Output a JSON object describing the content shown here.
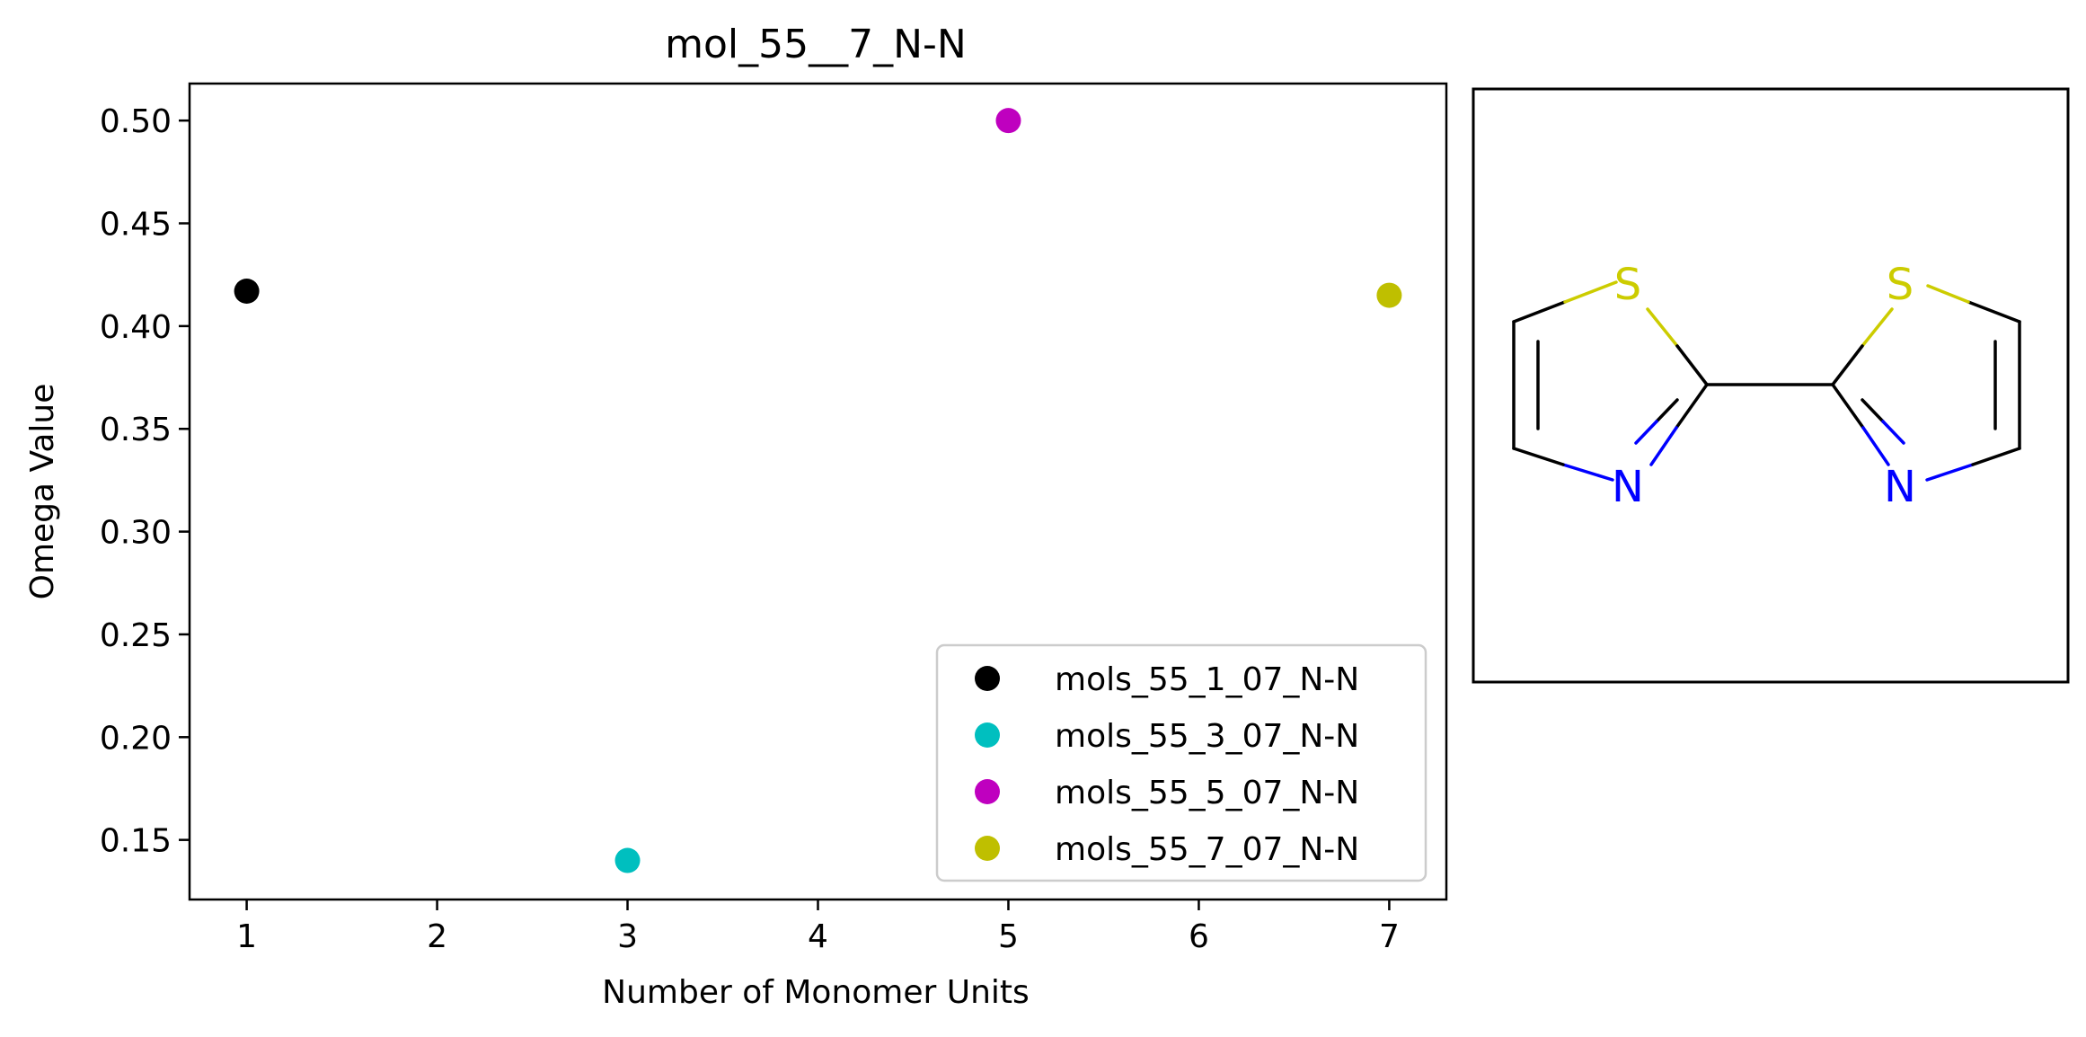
{
  "chart_data": {
    "type": "scatter",
    "title": "mol_55__7_N-N",
    "xlabel": "Number of Monomer Units",
    "ylabel": "Omega Value",
    "xlim": [
      0.7,
      7.3
    ],
    "ylim": [
      0.121,
      0.518
    ],
    "xticks": [
      1,
      2,
      3,
      4,
      5,
      6,
      7
    ],
    "xtick_labels": [
      "1",
      "2",
      "3",
      "4",
      "5",
      "6",
      "7"
    ],
    "yticks": [
      0.15,
      0.2,
      0.25,
      0.3,
      0.35,
      0.4,
      0.45,
      0.5
    ],
    "ytick_labels": [
      "0.15",
      "0.20",
      "0.25",
      "0.30",
      "0.35",
      "0.40",
      "0.45",
      "0.50"
    ],
    "grid": false,
    "legend_position": "lower right",
    "series": [
      {
        "name": "mols_55_1_07_N-N",
        "color": "#000000",
        "x": [
          1
        ],
        "y": [
          0.417
        ]
      },
      {
        "name": "mols_55_3_07_N-N",
        "color": "#00bfbf",
        "x": [
          3
        ],
        "y": [
          0.14
        ]
      },
      {
        "name": "mols_55_5_07_N-N",
        "color": "#bf00bf",
        "x": [
          5
        ],
        "y": [
          0.5
        ]
      },
      {
        "name": "mols_55_7_07_N-N",
        "color": "#bfbf00",
        "x": [
          7
        ],
        "y": [
          0.415
        ]
      }
    ]
  },
  "molecule": {
    "atoms": {
      "s_left": "S",
      "s_right": "S",
      "n_left": "N",
      "n_right": "N"
    },
    "colors": {
      "sulfur": "#cccc00",
      "nitrogen": "#0000ff",
      "carbon_bond": "#000000"
    }
  }
}
